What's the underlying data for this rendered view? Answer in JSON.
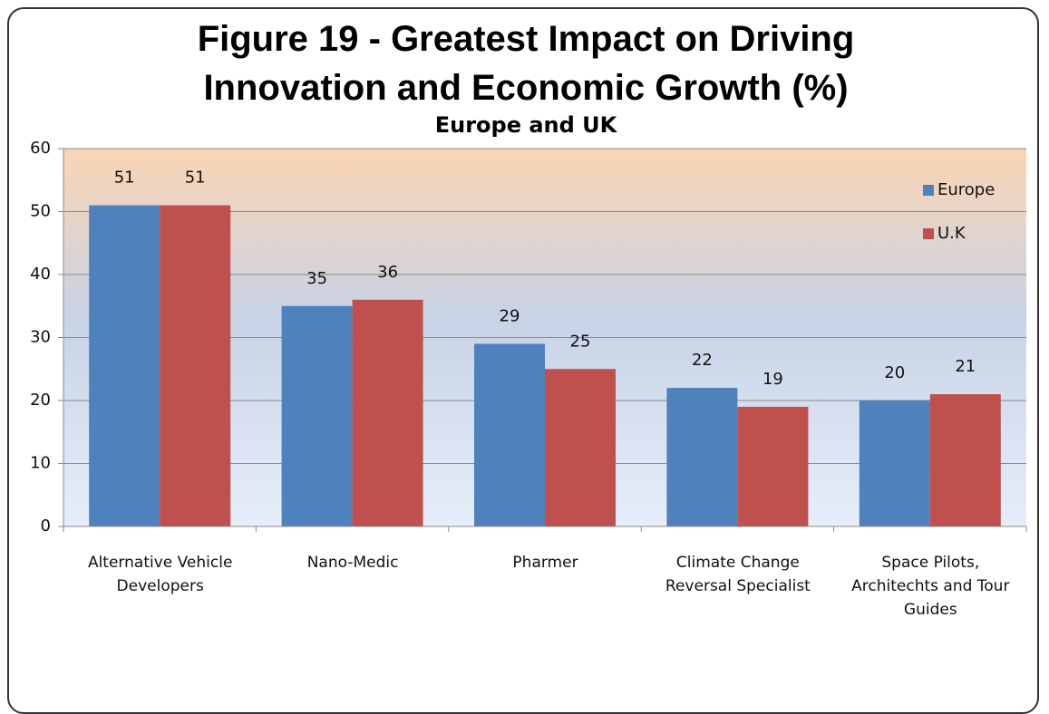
{
  "chart_data": {
    "type": "bar",
    "title": "Figure 19 - Greatest Impact on Driving Innovation and Economic Growth (%)",
    "subtitle": "Europe and UK",
    "categories": [
      "Alternative Vehicle Developers",
      "Nano-Medic",
      "Pharmer",
      "Climate Change Reversal Specialist",
      "Space Pilots, Architechts and Tour Guides"
    ],
    "series": [
      {
        "name": "Europe",
        "color": "#4f81bd",
        "values": [
          51,
          35,
          29,
          22,
          20
        ]
      },
      {
        "name": "U.K",
        "color": "#c0504d",
        "values": [
          51,
          36,
          25,
          19,
          21
        ]
      }
    ],
    "ylim": [
      0,
      60
    ],
    "yticks": [
      0,
      10,
      20,
      30,
      40,
      50,
      60
    ],
    "grid": true,
    "legend": "top-right"
  }
}
